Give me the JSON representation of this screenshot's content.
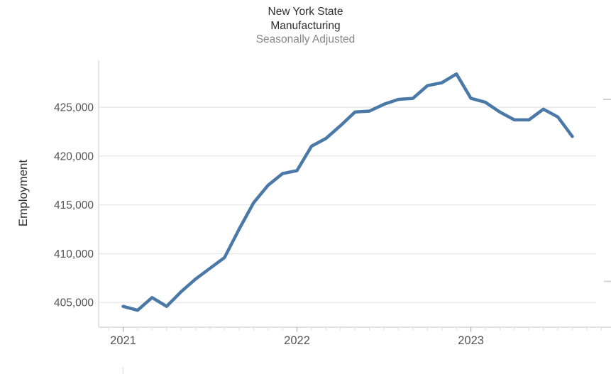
{
  "title": {
    "line1": "New York State",
    "line2": "Manufacturing",
    "subtitle": "Seasonally Adjusted"
  },
  "y_axis": {
    "label": "Employment",
    "ticks": [
      {
        "value": 425000,
        "label": "425,000"
      },
      {
        "value": 420000,
        "label": "420,000"
      },
      {
        "value": 415000,
        "label": "415,000"
      },
      {
        "value": 410000,
        "label": "410,000"
      },
      {
        "value": 405000,
        "label": "405,000"
      }
    ]
  },
  "x_axis": {
    "ticks": [
      {
        "label": "2021",
        "month_index": 0
      },
      {
        "label": "2022",
        "month_index": 12
      },
      {
        "label": "2023",
        "month_index": 24
      }
    ]
  },
  "colors": {
    "line": "#4a79a8",
    "grid": "#e9e9e9",
    "axis": "#d8d8d8",
    "minor_tick": "#dcdcdc",
    "major_tick": "#ababab",
    "tick_label": "#545454"
  },
  "chart_data": {
    "type": "line",
    "title": "New York State Manufacturing",
    "subtitle": "Seasonally Adjusted",
    "xlabel": "",
    "ylabel": "Employment",
    "ylim": [
      402500,
      429800
    ],
    "grid": true,
    "legend": "none",
    "x": [
      "Jan 2021",
      "Feb 2021",
      "Mar 2021",
      "Apr 2021",
      "May 2021",
      "Jun 2021",
      "Jul 2021",
      "Aug 2021",
      "Sep 2021",
      "Oct 2021",
      "Nov 2021",
      "Dec 2021",
      "Jan 2022",
      "Feb 2022",
      "Mar 2022",
      "Apr 2022",
      "May 2022",
      "Jun 2022",
      "Jul 2022",
      "Aug 2022",
      "Sep 2022",
      "Oct 2022",
      "Nov 2022",
      "Dec 2022",
      "Jan 2023",
      "Feb 2023",
      "Mar 2023",
      "Apr 2023",
      "May 2023",
      "Jun 2023",
      "Jul 2023",
      "Aug 2023"
    ],
    "series": [
      {
        "name": "New York State Manufacturing Employment (Seasonally Adjusted)",
        "color": "#4a79a8",
        "values": [
          404600,
          404200,
          405500,
          404600,
          406100,
          407400,
          408500,
          409600,
          412500,
          415200,
          417000,
          418200,
          418500,
          421000,
          421800,
          423100,
          424500,
          424600,
          425300,
          425800,
          425900,
          427200,
          427500,
          428400,
          425900,
          425500,
          424500,
          423700,
          423700,
          424800,
          424000,
          422000
        ]
      }
    ]
  }
}
